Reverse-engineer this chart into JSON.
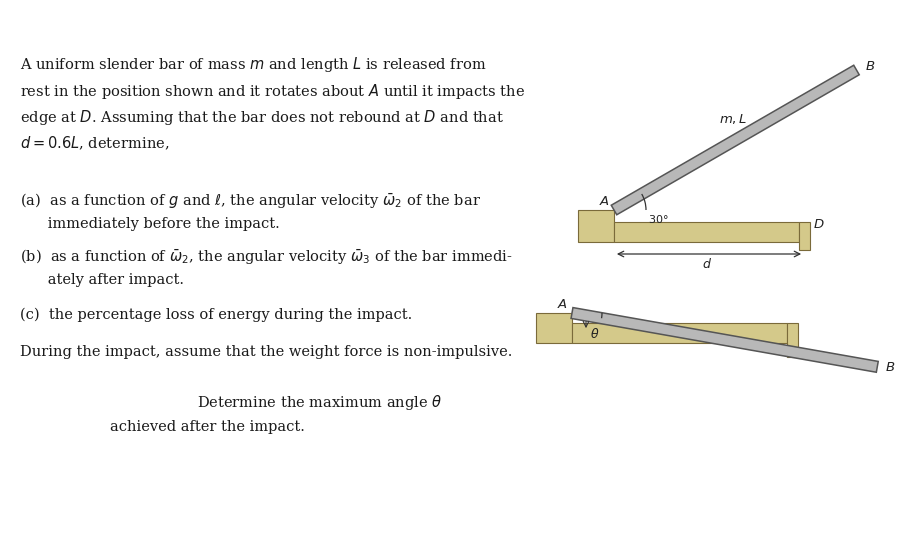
{
  "bg_color": "#ffffff",
  "text_color": "#1a1a1a",
  "bar_color": "#d4c98a",
  "bar_edge_color": "#7a6a3a",
  "slender_bar_color_face": "#b8b8b8",
  "slender_bar_color_edge": "#555555",
  "fig_width": 9.19,
  "fig_height": 5.34,
  "paragraph1": "A uniform slender bar of mass $m$ and length $L$ is released from\nrest in the position shown and it rotates about $A$ until it impacts the\nedge at $D$. Assuming that the bar does not rebound at $D$ and that\n$d = 0.6L$, determine,",
  "item_a": "(a)  as a function of $g$ and $\\ell$, the angular velocity $\\bar{\\omega}_2$ of the bar\n      immediately before the impact.",
  "item_b": "(b)  as a function of $\\bar{\\omega}_2$, the angular velocity $\\bar{\\omega}_3$ of the bar immedi-\n      ately after impact.",
  "item_c": "(c)  the percentage loss of energy during the impact.",
  "paragraph2": "During the impact, assume that the weight force is non-impulsive.",
  "p3_line1": "Determine the maximum angle $\\theta$",
  "p3_line2": "achieved after the impact."
}
